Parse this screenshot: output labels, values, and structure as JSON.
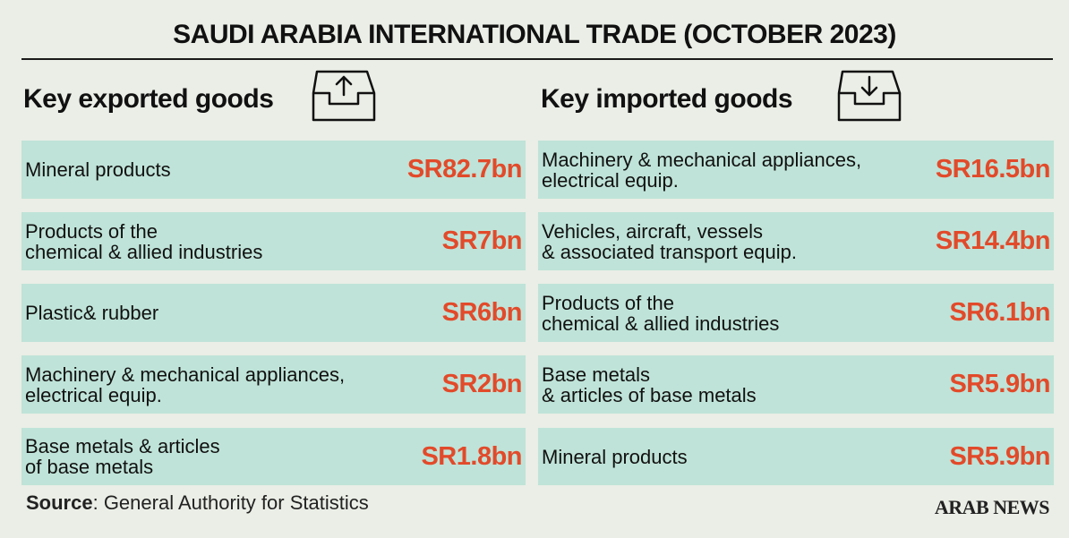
{
  "title": "SAUDI ARABIA INTERNATIONAL TRADE (OCTOBER 2023)",
  "colors": {
    "background": "#eaeee6",
    "row_fill": "#bfe3d8",
    "value_text": "#e24a2a",
    "text": "#111111"
  },
  "exports": {
    "heading": "Key exported goods",
    "icon": "tray-upload-icon",
    "rows": [
      {
        "label": "Mineral products",
        "value": "SR82.7bn"
      },
      {
        "label": "Products of the\nchemical & allied industries",
        "value": "SR7bn"
      },
      {
        "label": "Plastic& rubber",
        "value": "SR6bn"
      },
      {
        "label": "Machinery & mechanical appliances,\nelectrical equip.",
        "value": "SR2bn"
      },
      {
        "label": "Base metals & articles\nof base metals",
        "value": "SR1.8bn"
      }
    ]
  },
  "imports": {
    "heading": "Key imported goods",
    "icon": "tray-download-icon",
    "rows": [
      {
        "label": "Machinery & mechanical appliances,\nelectrical equip.",
        "value": "SR16.5bn"
      },
      {
        "label": "Vehicles, aircraft, vessels\n& associated transport equip.",
        "value": "SR14.4bn"
      },
      {
        "label": "Products of the\nchemical & allied industries",
        "value": "SR6.1bn"
      },
      {
        "label": "Base metals\n& articles of base metals",
        "value": "SR5.9bn"
      },
      {
        "label": "Mineral products",
        "value": "SR5.9bn"
      }
    ]
  },
  "source": {
    "label": "Source",
    "text": ": General Authority for Statistics"
  },
  "brand": "ARAB NEWS",
  "chart_data": {
    "type": "table",
    "title": "SAUDI ARABIA INTERNATIONAL TRADE (OCTOBER 2023)",
    "unit": "SR bn",
    "tables": [
      {
        "name": "Key exported goods",
        "categories": [
          "Mineral products",
          "Products of the chemical & allied industries",
          "Plastic& rubber",
          "Machinery & mechanical appliances, electrical equip.",
          "Base metals & articles of base metals"
        ],
        "values": [
          82.7,
          7,
          6,
          2,
          1.8
        ]
      },
      {
        "name": "Key imported goods",
        "categories": [
          "Machinery & mechanical appliances, electrical equip.",
          "Vehicles, aircraft, vessels & associated transport equip.",
          "Products of the chemical & allied industries",
          "Base metals & articles of base metals",
          "Mineral products"
        ],
        "values": [
          16.5,
          14.4,
          6.1,
          5.9,
          5.9
        ]
      }
    ]
  }
}
